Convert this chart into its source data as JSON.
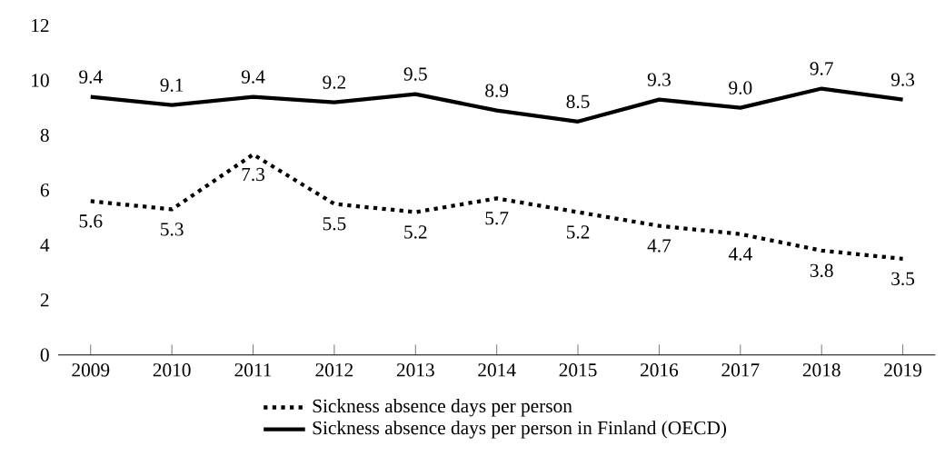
{
  "chart_data": {
    "type": "line",
    "categories": [
      "2009",
      "2010",
      "2011",
      "2012",
      "2013",
      "2014",
      "2015",
      "2016",
      "2017",
      "2018",
      "2019"
    ],
    "series": [
      {
        "name": "Sickness absence days per person",
        "color": "#000000",
        "line_style": "dotted",
        "values": [
          5.6,
          5.3,
          7.3,
          5.5,
          5.2,
          5.7,
          5.2,
          4.7,
          4.4,
          3.8,
          3.5
        ]
      },
      {
        "name": "Sickness absence days per person in Finland (OECD)",
        "color": "#000000",
        "line_style": "solid",
        "values": [
          9.4,
          9.1,
          9.4,
          9.2,
          9.5,
          8.9,
          8.5,
          9.3,
          9.0,
          9.7,
          9.3
        ],
        "value_labels": [
          "9.4",
          "9.1",
          "9.4",
          "9.2",
          "9.5",
          "8.9",
          "8.5",
          "9.3",
          "9.0",
          "9.7",
          "9.3"
        ]
      }
    ],
    "ylim": [
      0,
      12
    ],
    "yticks": [
      0,
      2,
      4,
      6,
      8,
      10,
      12
    ],
    "data_labels": true,
    "legend": "bottom",
    "grid": false,
    "marker": "none"
  }
}
